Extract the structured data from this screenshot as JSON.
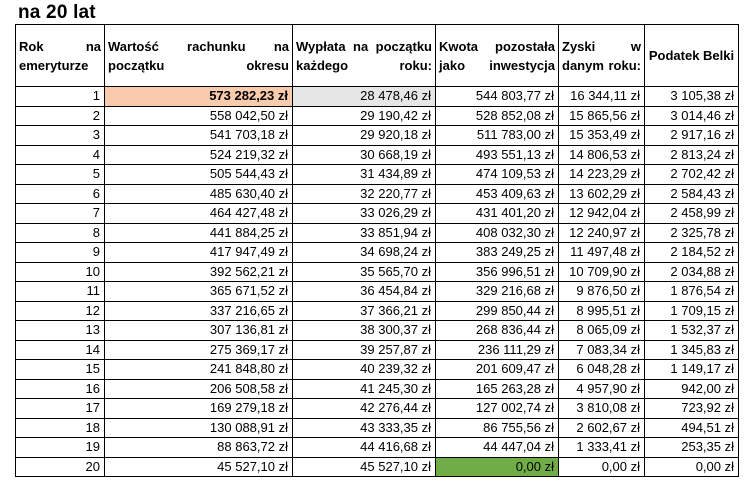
{
  "title": "na 20 lat",
  "colors": {
    "highlight_orange": "#f8cbad",
    "highlight_gray": "#e7e6e6",
    "highlight_green": "#70ad47"
  },
  "table": {
    "headers": [
      "Rok na emeryturze",
      "Wartość rachunku na początku okresu",
      "Wypłata na początku każdego roku:",
      "Kwota pozostała jako inwestycja",
      "Zyski w danym roku:",
      "Podatek Belki"
    ],
    "rows": [
      [
        "1",
        "573 282,23 zł",
        "28 478,46 zł",
        "544 803,77 zł",
        "16 344,11 zł",
        "3 105,38 zł"
      ],
      [
        "2",
        "558 042,50 zł",
        "29 190,42 zł",
        "528 852,08 zł",
        "15 865,56 zł",
        "3 014,46 zł"
      ],
      [
        "3",
        "541 703,18 zł",
        "29 920,18 zł",
        "511 783,00 zł",
        "15 353,49 zł",
        "2 917,16 zł"
      ],
      [
        "4",
        "524 219,32 zł",
        "30 668,19 zł",
        "493 551,13 zł",
        "14 806,53 zł",
        "2 813,24 zł"
      ],
      [
        "5",
        "505 544,43 zł",
        "31 434,89 zł",
        "474 109,53 zł",
        "14 223,29 zł",
        "2 702,42 zł"
      ],
      [
        "6",
        "485 630,40 zł",
        "32 220,77 zł",
        "453 409,63 zł",
        "13 602,29 zł",
        "2 584,43 zł"
      ],
      [
        "7",
        "464 427,48 zł",
        "33 026,29 zł",
        "431 401,20 zł",
        "12 942,04 zł",
        "2 458,99 zł"
      ],
      [
        "8",
        "441 884,25 zł",
        "33 851,94 zł",
        "408 032,30 zł",
        "12 240,97 zł",
        "2 325,78 zł"
      ],
      [
        "9",
        "417 947,49 zł",
        "34 698,24 zł",
        "383 249,25 zł",
        "11 497,48 zł",
        "2 184,52 zł"
      ],
      [
        "10",
        "392 562,21 zł",
        "35 565,70 zł",
        "356 996,51 zł",
        "10 709,90 zł",
        "2 034,88 zł"
      ],
      [
        "11",
        "365 671,52 zł",
        "36 454,84 zł",
        "329 216,68 zł",
        "9 876,50 zł",
        "1 876,54 zł"
      ],
      [
        "12",
        "337 216,65 zł",
        "37 366,21 zł",
        "299 850,44 zł",
        "8 995,51 zł",
        "1 709,15 zł"
      ],
      [
        "13",
        "307 136,81 zł",
        "38 300,37 zł",
        "268 836,44 zł",
        "8 065,09 zł",
        "1 532,37 zł"
      ],
      [
        "14",
        "275 369,17 zł",
        "39 257,87 zł",
        "236 111,29 zł",
        "7 083,34 zł",
        "1 345,83 zł"
      ],
      [
        "15",
        "241 848,80 zł",
        "40 239,32 zł",
        "201 609,47 zł",
        "6 048,28 zł",
        "1 149,17 zł"
      ],
      [
        "16",
        "206 508,58 zł",
        "41 245,30 zł",
        "165 263,28 zł",
        "4 957,90 zł",
        "942,00 zł"
      ],
      [
        "17",
        "169 279,18 zł",
        "42 276,44 zł",
        "127 002,74 zł",
        "3 810,08 zł",
        "723,92 zł"
      ],
      [
        "18",
        "130 088,91 zł",
        "43 333,35 zł",
        "86 755,56 zł",
        "2 602,67 zł",
        "494,51 zł"
      ],
      [
        "19",
        "88 863,72 zł",
        "44 416,68 zł",
        "44 447,04 zł",
        "1 333,41 zł",
        "253,35 zł"
      ],
      [
        "20",
        "45 527,10 zł",
        "45 527,10 zł",
        "0,00 zł",
        "0,00 zł",
        "0,00 zł"
      ]
    ]
  }
}
